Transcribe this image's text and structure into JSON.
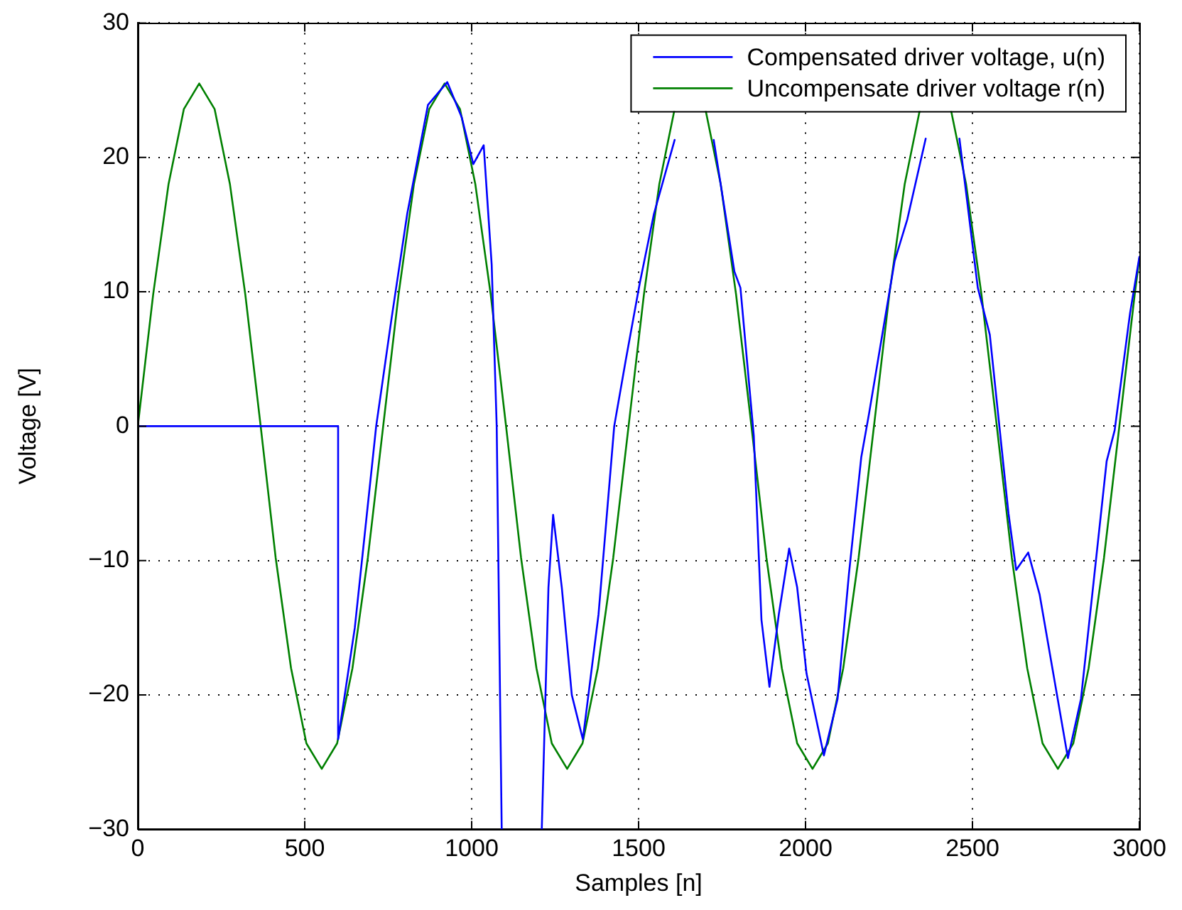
{
  "chart_data": {
    "type": "line",
    "xlabel": "Samples [n]",
    "ylabel": "Voltage [V]",
    "xlim": [
      0,
      3000
    ],
    "xticks": [
      0,
      500,
      1000,
      1500,
      2000,
      2500,
      3000
    ],
    "ylim": [
      -30,
      30
    ],
    "yticks": [
      {
        "value": -30,
        "label": "−30"
      },
      {
        "value": -20,
        "label": "−20"
      },
      {
        "value": -10,
        "label": "−10"
      },
      0,
      10,
      20,
      30
    ],
    "grid": true,
    "legend": "top right",
    "marker": "none",
    "line_style": "solid",
    "series": [
      {
        "name": "Compensated driver voltage, u(n)",
        "color": "#0000ff",
        "x": [
          0,
          600,
          600,
          650,
          714,
          760,
          807,
          869,
          927,
          970,
          1005,
          1036,
          1060,
          1075,
          1090,
          1150,
          1210,
          1230,
          1244,
          1270,
          1300,
          1333,
          1380,
          1427,
          1460,
          1504,
          1546,
          1608,
          1660,
          1725,
          1787,
          1805,
          1845,
          1868,
          1892,
          1920,
          1951,
          1975,
          2003,
          2055,
          2096,
          2130,
          2167,
          2190,
          2267,
          2305,
          2360,
          2390,
          2461,
          2516,
          2552,
          2608,
          2631,
          2667,
          2701,
          2786,
          2825,
          2902,
          2926,
          2972,
          3000
        ],
        "values": [
          0,
          0,
          -23.3,
          -15,
          0,
          8,
          15.8,
          23.9,
          25.6,
          23,
          19.5,
          20.9,
          12,
          0,
          -30,
          null,
          -30,
          -12,
          -6.6,
          -12,
          -20,
          -23.3,
          -14,
          0,
          4.7,
          10.7,
          15.8,
          21.3,
          null,
          21.3,
          11.5,
          10.3,
          -0.7,
          -14.4,
          -19.4,
          -14,
          -9.1,
          -12,
          -18.4,
          -24.5,
          -20.3,
          -11,
          -2.3,
          0.9,
          12.3,
          15.4,
          21.4,
          null,
          21.4,
          10.3,
          6.8,
          -6.5,
          -10.7,
          -9.4,
          -12.5,
          -24.7,
          -20.3,
          -2.6,
          -0.3,
          8.4,
          12.6
        ]
      },
      {
        "name": "Uncompensate driver voltage r(n)",
        "color": "#008000",
        "x": [
          0,
          46,
          92,
          138,
          184,
          230,
          276,
          322,
          368,
          413,
          459,
          505,
          551,
          597,
          643,
          689,
          735,
          781,
          827,
          873,
          919,
          965,
          1011,
          1057,
          1103,
          1148,
          1194,
          1240,
          1286,
          1332,
          1378,
          1424,
          1470,
          1516,
          1562,
          1608,
          1654,
          1700,
          1746,
          1792,
          1838,
          1883,
          1929,
          1975,
          2021,
          2067,
          2113,
          2159,
          2205,
          2251,
          2297,
          2343,
          2389,
          2435,
          2481,
          2527,
          2573,
          2618,
          2664,
          2710,
          2756,
          2802,
          2848,
          2894,
          2940,
          2986,
          3000
        ],
        "values": [
          0,
          9.8,
          18,
          23.6,
          25.5,
          23.6,
          18,
          9.8,
          0,
          -9.8,
          -18,
          -23.6,
          -25.5,
          -23.6,
          -18,
          -9.8,
          0,
          9.8,
          18,
          23.6,
          25.5,
          23.6,
          18,
          9.8,
          0,
          -9.8,
          -18,
          -23.6,
          -25.5,
          -23.6,
          -18,
          -9.8,
          0,
          9.8,
          18,
          23.6,
          null,
          23.6,
          18,
          9.8,
          0,
          -9.8,
          -18,
          -23.6,
          -25.5,
          -23.6,
          -18,
          -9.8,
          0,
          9.8,
          18,
          23.6,
          null,
          23.6,
          18,
          9.8,
          0,
          -9.8,
          -18,
          -23.6,
          -25.5,
          -23.6,
          -18,
          -9.8,
          0,
          9.8,
          12.5
        ]
      }
    ]
  }
}
